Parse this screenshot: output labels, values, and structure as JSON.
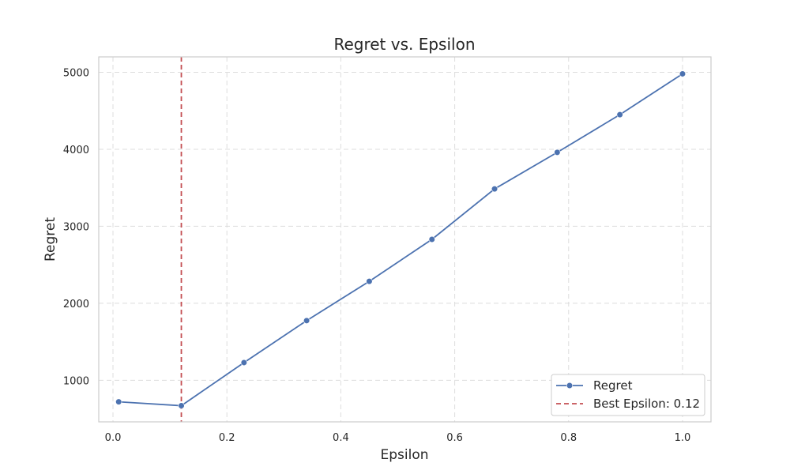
{
  "chart_data": {
    "type": "line",
    "title": "Regret vs. Epsilon",
    "xlabel": "Epsilon",
    "ylabel": "Regret",
    "xlim": [
      -0.025,
      1.05
    ],
    "ylim": [
      460,
      5200
    ],
    "xticks": [
      "0.0",
      "0.2",
      "0.4",
      "0.6",
      "0.8",
      "1.0"
    ],
    "yticks": [
      "1000",
      "2000",
      "3000",
      "4000",
      "5000"
    ],
    "grid": true,
    "legend_position": "lower-right",
    "series": [
      {
        "name": "Regret",
        "color": "#4c72b0",
        "marker": "circle",
        "x": [
          0.01,
          0.12,
          0.23,
          0.34,
          0.45,
          0.56,
          0.67,
          0.78,
          0.89,
          1.0
        ],
        "y": [
          720,
          670,
          1230,
          1775,
          2285,
          2830,
          3485,
          3960,
          4450,
          4980
        ]
      }
    ],
    "vline": {
      "name": "Best Epsilon: 0.12",
      "x": 0.12,
      "color": "#c44e52",
      "style": "dashed"
    }
  }
}
